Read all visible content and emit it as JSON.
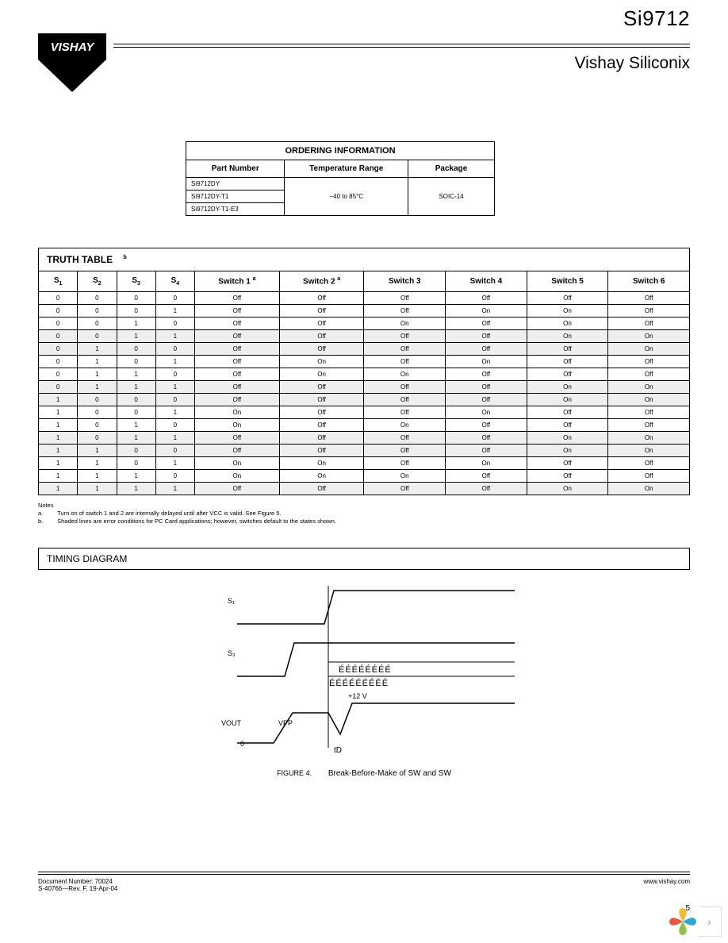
{
  "header": {
    "logo_text": "VISHAY",
    "product_code": "Si9712",
    "company": "Vishay Siliconix"
  },
  "ordering": {
    "title": "ORDERING INFORMATION",
    "columns": [
      "Part Number",
      "Temperature Range",
      "Package"
    ],
    "part_numbers": [
      "Si9712DY",
      "Si9712DY-T1",
      "Si9712DY-T1-E3"
    ],
    "temp_range": "−40 to 85°C",
    "package": "SOIC-14"
  },
  "truth": {
    "title": "TRUTH TABLE",
    "title_sup": "b",
    "headers": {
      "s": [
        "S",
        "S",
        "S",
        "S"
      ],
      "s_sub": [
        "1",
        "2",
        "3",
        "4"
      ],
      "sw": [
        "Switch 1",
        "Switch 2",
        "Switch 3",
        "Switch 4",
        "Switch 5",
        "Switch 6"
      ],
      "sw_sup": [
        "a",
        "a",
        "",
        "",
        "",
        ""
      ]
    },
    "rows": [
      {
        "s": [
          "0",
          "0",
          "0",
          "0"
        ],
        "v": [
          "Off",
          "Off",
          "Off",
          "Off",
          "Off",
          "Off"
        ],
        "shaded": false
      },
      {
        "s": [
          "0",
          "0",
          "0",
          "1"
        ],
        "v": [
          "Off",
          "Off",
          "Off",
          "On",
          "On",
          "Off"
        ],
        "shaded": false
      },
      {
        "s": [
          "0",
          "0",
          "1",
          "0"
        ],
        "v": [
          "Off",
          "Off",
          "On",
          "Off",
          "On",
          "Off"
        ],
        "shaded": false
      },
      {
        "s": [
          "0",
          "0",
          "1",
          "1"
        ],
        "v": [
          "Off",
          "Off",
          "Off",
          "Off",
          "On",
          "On"
        ],
        "shaded": true
      },
      {
        "s": [
          "0",
          "1",
          "0",
          "0"
        ],
        "v": [
          "Off",
          "Off",
          "Off",
          "Off",
          "Off",
          "On"
        ],
        "shaded": true
      },
      {
        "s": [
          "0",
          "1",
          "0",
          "1"
        ],
        "v": [
          "Off",
          "On",
          "Off",
          "On",
          "Off",
          "Off"
        ],
        "shaded": false
      },
      {
        "s": [
          "0",
          "1",
          "1",
          "0"
        ],
        "v": [
          "Off",
          "On",
          "On",
          "Off",
          "Off",
          "Off"
        ],
        "shaded": false
      },
      {
        "s": [
          "0",
          "1",
          "1",
          "1"
        ],
        "v": [
          "Off",
          "Off",
          "Off",
          "Off",
          "On",
          "On"
        ],
        "shaded": true
      },
      {
        "s": [
          "1",
          "0",
          "0",
          "0"
        ],
        "v": [
          "Off",
          "Off",
          "Off",
          "Off",
          "On",
          "On"
        ],
        "shaded": true
      },
      {
        "s": [
          "1",
          "0",
          "0",
          "1"
        ],
        "v": [
          "On",
          "Off",
          "Off",
          "On",
          "Off",
          "Off"
        ],
        "shaded": false
      },
      {
        "s": [
          "1",
          "0",
          "1",
          "0"
        ],
        "v": [
          "On",
          "Off",
          "On",
          "Off",
          "Off",
          "Off"
        ],
        "shaded": false
      },
      {
        "s": [
          "1",
          "0",
          "1",
          "1"
        ],
        "v": [
          "Off",
          "Off",
          "Off",
          "Off",
          "On",
          "On"
        ],
        "shaded": true
      },
      {
        "s": [
          "1",
          "1",
          "0",
          "0"
        ],
        "v": [
          "Off",
          "Off",
          "Off",
          "Off",
          "On",
          "On"
        ],
        "shaded": true
      },
      {
        "s": [
          "1",
          "1",
          "0",
          "1"
        ],
        "v": [
          "On",
          "On",
          "Off",
          "On",
          "Off",
          "Off"
        ],
        "shaded": false
      },
      {
        "s": [
          "1",
          "1",
          "1",
          "0"
        ],
        "v": [
          "On",
          "On",
          "On",
          "Off",
          "Off",
          "Off"
        ],
        "shaded": false
      },
      {
        "s": [
          "1",
          "1",
          "1",
          "1"
        ],
        "v": [
          "Off",
          "Off",
          "Off",
          "Off",
          "On",
          "On"
        ],
        "shaded": true
      }
    ]
  },
  "notes": {
    "heading": "Notes",
    "items": [
      {
        "label": "a.",
        "text": "Turn on of switch 1 and 2 are internally delayed until after VCC                                    is valid. See Figure 5."
      },
      {
        "label": "b.",
        "text": "Shaded lines are error conditions for PC Card applications; however, switches default to the states shown."
      }
    ]
  },
  "timing": {
    "title": "TIMING DIAGRAM",
    "sig_labels": [
      "S₁",
      "S₃",
      "VOUT"
    ],
    "vpp_label": "VPP",
    "delay_label": "+12 V",
    "t_label": "tD",
    "fig_label": "FIGURE 4.",
    "caption": "Break-Before-Make of SW          and SW"
  },
  "footer": {
    "doc_left1": "Document Number: 70024",
    "doc_left2": "S-40766—Rev. F, 19-Apr-04",
    "doc_right": "www.vishay.com",
    "page": "5"
  },
  "colors": {
    "shaded_row": "#f1eef1",
    "pinwheel": [
      "#f7b731",
      "#e8573f",
      "#8bc24a",
      "#2aa8d8"
    ]
  }
}
